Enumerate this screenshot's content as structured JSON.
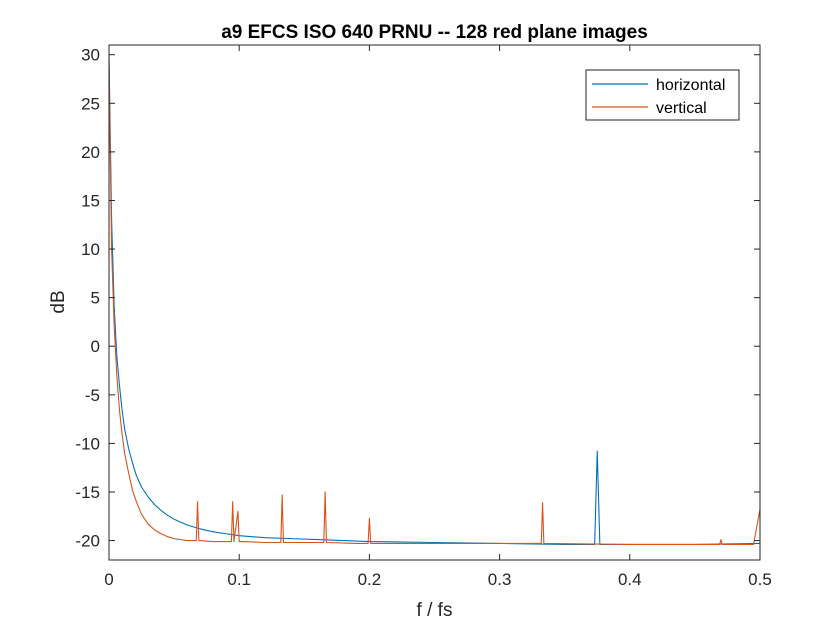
{
  "chart_data": {
    "type": "line",
    "title": "a9 EFCS ISO 640 PRNU -- 128 red plane images",
    "xlabel": "f / fs",
    "ylabel": "dB",
    "xlim": [
      0,
      0.5
    ],
    "ylim": [
      -22,
      31
    ],
    "x_ticks": [
      0,
      0.1,
      0.2,
      0.3,
      0.4,
      0.5
    ],
    "x_tick_labels": [
      "0",
      "0.1",
      "0.2",
      "0.3",
      "0.4",
      "0.5"
    ],
    "y_ticks": [
      30,
      25,
      20,
      15,
      10,
      5,
      0,
      -5,
      -10,
      -15,
      -20
    ],
    "y_tick_labels": [
      "30",
      "25",
      "20",
      "15",
      "10",
      "5",
      "0",
      "-5",
      "-10",
      "-15",
      "-20"
    ],
    "grid": false,
    "legend_position": "top-right",
    "series": [
      {
        "name": "horizontal",
        "color": "#0072BD",
        "x": [
          0,
          0.002,
          0.004,
          0.006,
          0.008,
          0.01,
          0.012,
          0.015,
          0.018,
          0.021,
          0.025,
          0.03,
          0.035,
          0.04,
          0.045,
          0.05,
          0.06,
          0.07,
          0.08,
          0.09,
          0.1,
          0.12,
          0.14,
          0.16,
          0.18,
          0.2,
          0.25,
          0.3,
          0.35,
          0.373,
          0.375,
          0.377,
          0.4,
          0.45,
          0.5
        ],
        "y": [
          30,
          13,
          4,
          -1,
          -4,
          -6.5,
          -8.5,
          -10.5,
          -12,
          -13.3,
          -14.5,
          -15.5,
          -16.3,
          -16.9,
          -17.4,
          -17.8,
          -18.4,
          -18.8,
          -19.1,
          -19.3,
          -19.5,
          -19.7,
          -19.8,
          -19.9,
          -20,
          -20.1,
          -20.2,
          -20.3,
          -20.4,
          -20.4,
          -10.8,
          -20.4,
          -20.4,
          -20.4,
          -20.3
        ]
      },
      {
        "name": "vertical",
        "color": "#D95319",
        "x": [
          0,
          0.002,
          0.004,
          0.006,
          0.008,
          0.01,
          0.012,
          0.015,
          0.018,
          0.021,
          0.025,
          0.03,
          0.035,
          0.04,
          0.045,
          0.05,
          0.06,
          0.067,
          0.068,
          0.069,
          0.08,
          0.094,
          0.095,
          0.096,
          0.099,
          0.1,
          0.101,
          0.12,
          0.132,
          0.133,
          0.134,
          0.145,
          0.165,
          0.166,
          0.167,
          0.19,
          0.199,
          0.2,
          0.201,
          0.25,
          0.3,
          0.332,
          0.333,
          0.334,
          0.4,
          0.45,
          0.469,
          0.47,
          0.471,
          0.495,
          0.5
        ],
        "y": [
          29,
          10,
          2,
          -3,
          -6.5,
          -9,
          -11,
          -13,
          -14.8,
          -16,
          -17.3,
          -18.3,
          -18.9,
          -19.3,
          -19.6,
          -19.8,
          -20,
          -20,
          -16,
          -20,
          -20.1,
          -20.1,
          -16,
          -20.1,
          -17,
          -20.1,
          -20.1,
          -20.2,
          -20.2,
          -15.3,
          -20.2,
          -20.2,
          -20.2,
          -15,
          -20.2,
          -20.3,
          -20.3,
          -17.7,
          -20.3,
          -20.3,
          -20.3,
          -20.3,
          -16.1,
          -20.3,
          -20.4,
          -20.4,
          -20.4,
          -19.9,
          -20.4,
          -20.4,
          -16.8
        ]
      }
    ]
  }
}
